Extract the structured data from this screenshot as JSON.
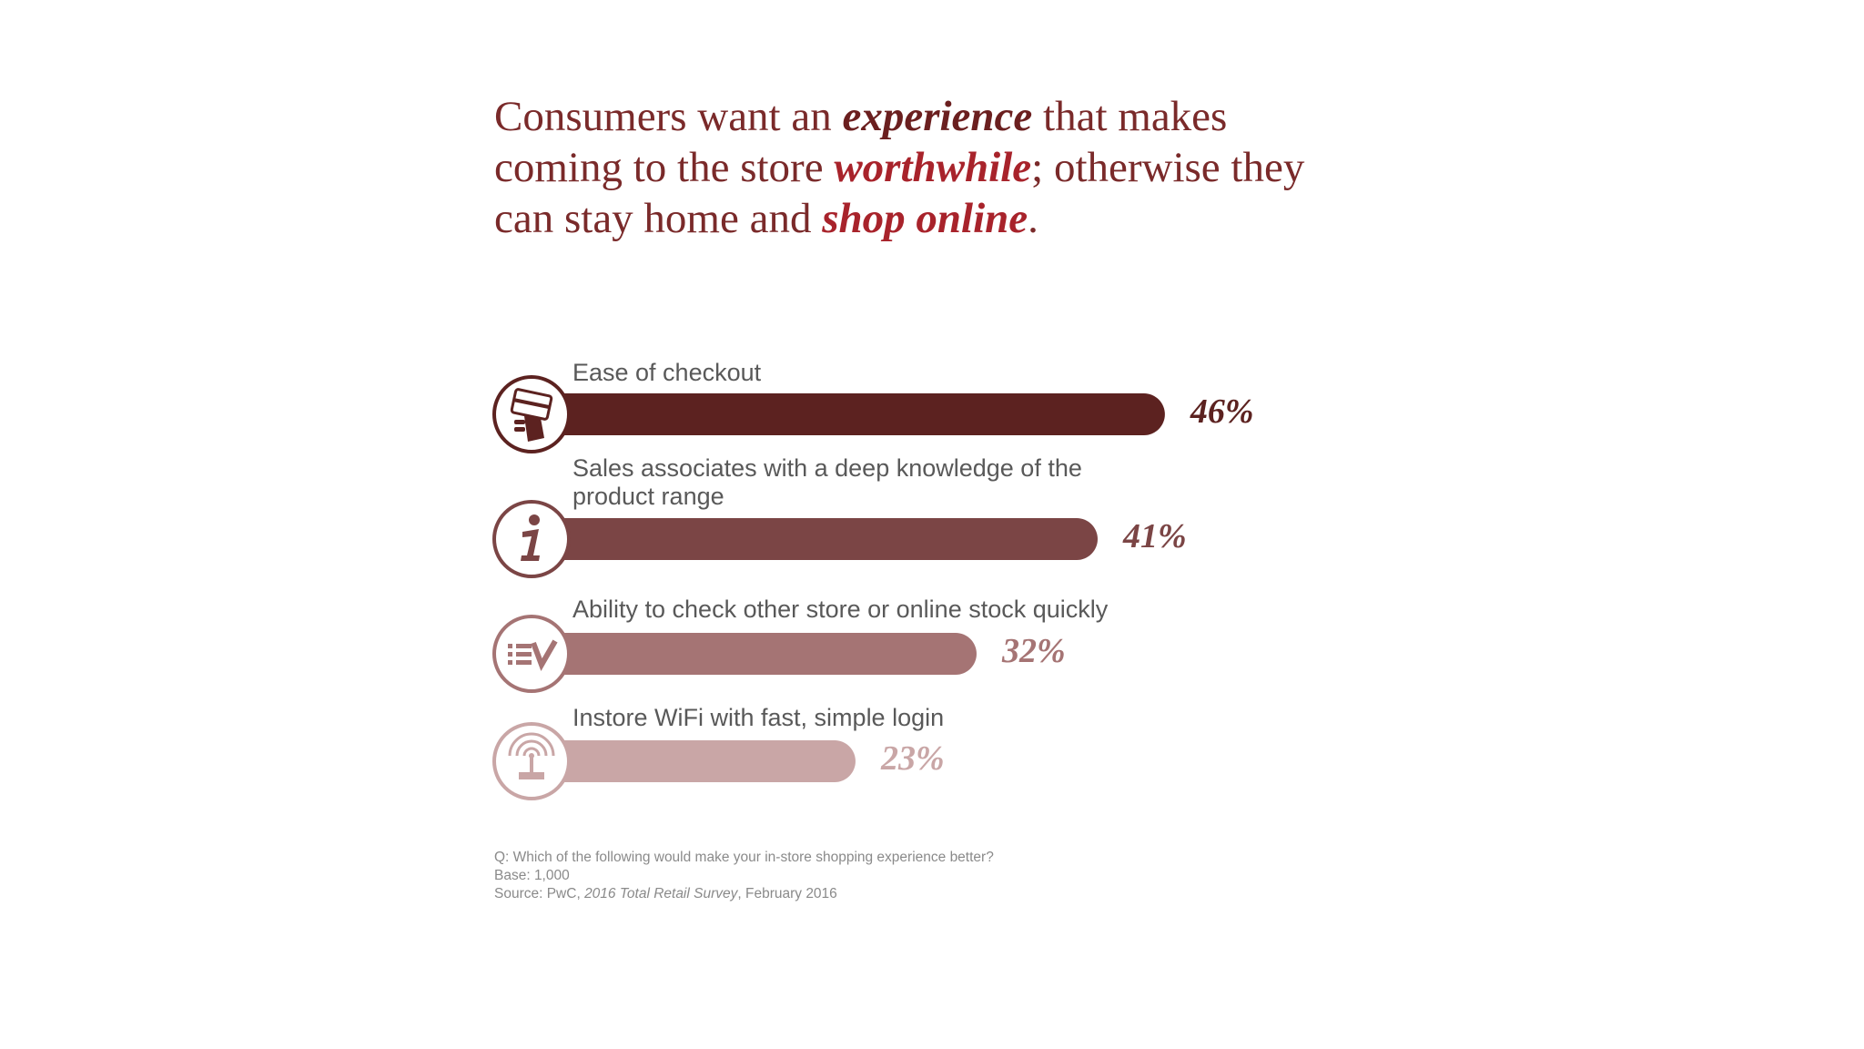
{
  "headline": {
    "part1": "Consumers want an ",
    "emph1": "experience",
    "part2": " that makes coming to the store ",
    "emph2": "worthwhile",
    "part3": "; otherwise they can stay home and ",
    "emph3": "shop online",
    "part4": "."
  },
  "chart_data": {
    "type": "bar",
    "orientation": "horizontal",
    "categories": [
      "Ease of checkout",
      "Sales associates with a deep knowledge of the product range",
      "Ability to check other store or online stock quickly",
      "Instore WiFi with fast, simple login"
    ],
    "values": [
      46,
      41,
      32,
      23
    ],
    "value_labels": [
      "46%",
      "41%",
      "32%",
      "23%"
    ],
    "unit": "%",
    "icons": [
      "credit-card-hand-icon",
      "info-icon",
      "checklist-icon",
      "wifi-antenna-icon"
    ],
    "colors": [
      "#5c2220",
      "#7b4545",
      "#a57474",
      "#c9a6a6"
    ],
    "grid": false,
    "legend": "none"
  },
  "footnotes": {
    "question": "Q: Which of the following would make your in-store shopping experience better?",
    "base": "Base: 1,000",
    "source_prefix": "Source: PwC, ",
    "source_title": "2016 Total Retail Survey",
    "source_suffix": ", February 2016"
  }
}
